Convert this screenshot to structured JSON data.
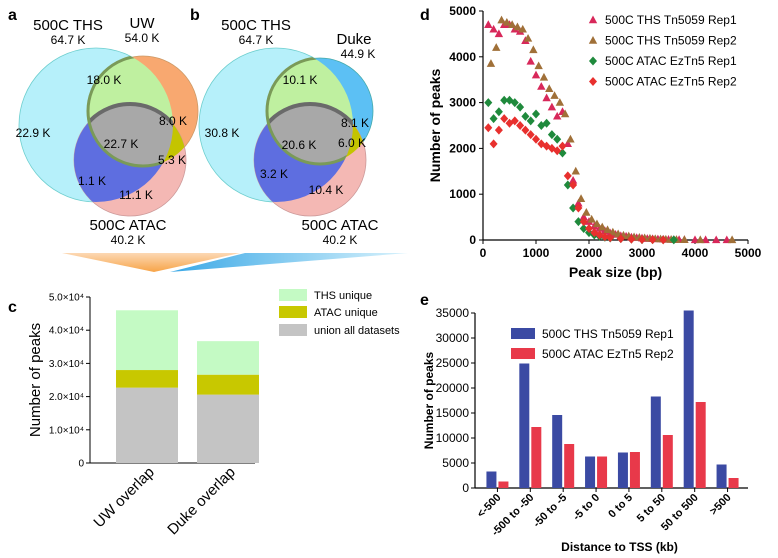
{
  "panels": {
    "a": "a",
    "b": "b",
    "c": "c",
    "d": "d",
    "e": "e"
  },
  "chart_data": [
    {
      "panel": "a",
      "type": "venn",
      "sets": [
        {
          "name": "500C THS",
          "size": "64.7 K",
          "color": "#b3f0fa"
        },
        {
          "name": "UW",
          "size": "54.0 K",
          "color": "#f8a870"
        },
        {
          "name": "500C ATAC",
          "size": "40.2 K",
          "color": "#f4b8b4"
        }
      ],
      "regions": {
        "ths_only": "22.9 K",
        "second_only": "8.0 K",
        "atac_only": "11.1 K",
        "ths_second": "18.0 K",
        "ths_atac": "1.1 K",
        "second_atac": "5.3 K",
        "all": "22.7 K"
      },
      "colors": {
        "ths_second": "#bff0a0",
        "ths_atac": "#5e6ee0",
        "second_atac": "#c4c400",
        "all": "#a8a8a8"
      }
    },
    {
      "panel": "b",
      "type": "venn",
      "sets": [
        {
          "name": "500C THS",
          "size": "64.7 K",
          "color": "#b3f0fa"
        },
        {
          "name": "Duke",
          "size": "44.9 K",
          "color": "#5cc0f4"
        },
        {
          "name": "500C ATAC",
          "size": "40.2 K",
          "color": "#f4b8b4"
        }
      ],
      "regions": {
        "ths_only": "30.8 K",
        "second_only": "8.1 K",
        "atac_only": "10.4 K",
        "ths_second": "10.1 K",
        "ths_atac": "3.2 K",
        "second_atac": "6.0 K",
        "all": "20.6 K"
      },
      "colors": {
        "ths_second": "#bff0a0",
        "ths_atac": "#5e6ee0",
        "second_atac": "#c4c400",
        "all": "#a8a8a8"
      }
    },
    {
      "panel": "c",
      "type": "bar",
      "stacked": true,
      "categories": [
        "UW overlap",
        "Duke overlap"
      ],
      "series": [
        {
          "name": "union all datasets",
          "color": "#c4c4c4",
          "values": [
            22700,
            20600
          ]
        },
        {
          "name": "ATAC unique",
          "color": "#c8c800",
          "values": [
            5300,
            6000
          ]
        },
        {
          "name": "THS unique",
          "color": "#c4fac4",
          "values": [
            18000,
            10100
          ]
        }
      ],
      "ylabel": "Number of peaks",
      "ylim": [
        0,
        50000
      ],
      "yticks": [
        {
          "value": 0,
          "label": "0"
        },
        {
          "value": 10000,
          "label": "1.0×10⁴"
        },
        {
          "value": 20000,
          "label": "2.0×10⁴"
        },
        {
          "value": 30000,
          "label": "3.0×10⁴"
        },
        {
          "value": 40000,
          "label": "4.0×10⁴"
        },
        {
          "value": 50000,
          "label": "5.0×10⁴"
        }
      ],
      "legend_order": [
        "THS unique",
        "ATAC unique",
        "union all datasets"
      ]
    },
    {
      "panel": "d",
      "type": "scatter",
      "xlabel": "Peak size (bp)",
      "ylabel": "Number of peaks",
      "xlim": [
        0,
        5000
      ],
      "ylim": [
        0,
        5000
      ],
      "xticks": [
        0,
        1000,
        2000,
        3000,
        4000,
        5000
      ],
      "yticks": [
        0,
        1000,
        2000,
        3000,
        4000,
        5000
      ],
      "series": [
        {
          "name": "500C THS Tn5059 Rep1",
          "marker": "triangle",
          "color": "#d8285a",
          "x": [
            100,
            200,
            300,
            400,
            500,
            600,
            700,
            800,
            900,
            1000,
            1100,
            1200,
            1300,
            1400,
            1500,
            1600,
            1700,
            1800,
            1900,
            2000,
            2100,
            2200,
            2300,
            2400,
            2500,
            2600,
            2700,
            2800,
            2900,
            3000,
            3100,
            3200,
            3300,
            3400,
            3500,
            3600,
            3700,
            3800,
            4000,
            4200,
            4400,
            4600
          ],
          "y": [
            4700,
            4600,
            4500,
            4700,
            4700,
            4600,
            4550,
            4350,
            3900,
            3600,
            3350,
            3100,
            2900,
            2700,
            2800,
            2100,
            1300,
            800,
            500,
            400,
            300,
            250,
            200,
            150,
            120,
            90,
            80,
            60,
            50,
            40,
            30,
            25,
            20,
            15,
            10,
            8,
            6,
            5,
            3,
            2,
            1,
            1
          ]
        },
        {
          "name": "500C THS Tn5059 Rep2",
          "marker": "triangle",
          "color": "#a07038",
          "x": [
            150,
            250,
            350,
            450,
            550,
            650,
            750,
            850,
            950,
            1050,
            1150,
            1250,
            1350,
            1450,
            1550,
            1650,
            1750,
            1850,
            1950,
            2050,
            2150,
            2250,
            2350,
            2450,
            2550,
            2650,
            2750,
            2850,
            2950,
            3050,
            3150,
            3250,
            3350,
            3450,
            3550,
            3650,
            3800,
            4100,
            4700
          ],
          "y": [
            3850,
            4200,
            4800,
            4750,
            4700,
            4650,
            4600,
            4400,
            4150,
            3800,
            3550,
            3300,
            3150,
            3000,
            2750,
            2200,
            1500,
            900,
            600,
            450,
            350,
            280,
            220,
            170,
            130,
            100,
            85,
            65,
            55,
            45,
            35,
            25,
            20,
            15,
            10,
            8,
            5,
            3,
            2
          ]
        },
        {
          "name": "500C ATAC EzTn5 Rep1",
          "marker": "diamond",
          "color": "#1f8a3c",
          "x": [
            100,
            200,
            300,
            400,
            500,
            600,
            700,
            800,
            900,
            1000,
            1100,
            1200,
            1300,
            1400,
            1500,
            1600,
            1700,
            1800,
            1900,
            2000,
            2100,
            2200,
            2300,
            2400,
            2600,
            2800,
            3000,
            3200,
            3400,
            3600
          ],
          "y": [
            3000,
            2650,
            2800,
            3050,
            3050,
            3000,
            2900,
            2700,
            2600,
            2750,
            2500,
            2550,
            2300,
            2200,
            1900,
            1200,
            700,
            400,
            250,
            160,
            110,
            80,
            60,
            45,
            30,
            20,
            12,
            8,
            5,
            3
          ]
        },
        {
          "name": "500C ATAC EzTn5 Rep2",
          "marker": "diamond",
          "color": "#e8302e",
          "x": [
            100,
            200,
            300,
            400,
            500,
            600,
            700,
            800,
            900,
            1000,
            1100,
            1200,
            1300,
            1400,
            1500,
            1600,
            1700,
            1800,
            1900,
            2000,
            2100,
            2200,
            2300,
            2400,
            2600,
            2800,
            3000,
            3200,
            3400
          ],
          "y": [
            2450,
            2100,
            2400,
            2650,
            2550,
            2600,
            2500,
            2400,
            2300,
            2200,
            2100,
            2050,
            2000,
            1950,
            2050,
            1400,
            1200,
            700,
            400,
            250,
            160,
            110,
            70,
            50,
            30,
            20,
            12,
            8,
            4
          ]
        }
      ]
    },
    {
      "panel": "e",
      "type": "bar",
      "categories": [
        "<-500",
        "-500 to -50",
        "-50 to -5",
        "-5 to 0",
        "0 to 5",
        "5 to 50",
        "50 to 500",
        ">500"
      ],
      "series": [
        {
          "name": "500C THS Tn5059 Rep1",
          "color": "#3b4aa3",
          "values": [
            3300,
            24900,
            14600,
            6300,
            7100,
            18300,
            35500,
            4700
          ]
        },
        {
          "name": "500C ATAC EzTn5 Rep2",
          "color": "#e8394a",
          "values": [
            1300,
            12200,
            8800,
            6300,
            7200,
            10600,
            17200,
            2000
          ]
        }
      ],
      "xlabel": "Distance to  TSS (kb)",
      "ylabel": "Number of peaks",
      "ylim": [
        0,
        35000
      ],
      "yticks": [
        0,
        5000,
        10000,
        15000,
        20000,
        25000,
        30000,
        35000
      ]
    }
  ]
}
